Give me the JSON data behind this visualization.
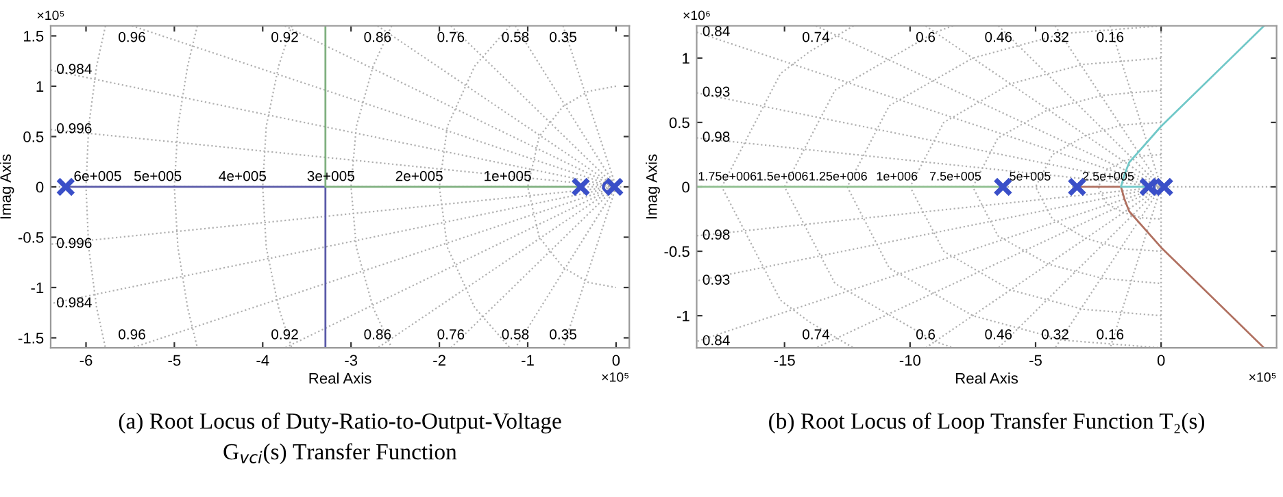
{
  "chart_data": [
    {
      "type": "line",
      "xlabel": "Real Axis",
      "ylabel": "Imag Axis",
      "xlim": [
        -6.4,
        0.15
      ],
      "ylim": [
        -1.6,
        1.6
      ],
      "xticks": [
        -6,
        -5,
        -4,
        -3,
        -2,
        -1,
        0
      ],
      "yticks": [
        -1.5,
        -1,
        -0.5,
        0,
        0.5,
        1,
        1.5
      ],
      "ref_lines": [
        {
          "axis": "y",
          "value": 0,
          "color": "#b0b0b0",
          "line_style": "dotted"
        }
      ],
      "series": [
        {
          "type": "line",
          "color": "#b0b0b0",
          "line_style": "dotted",
          "x": [
            -6.4,
            0,
            -6.4
          ],
          "values": [
            0.57,
            0,
            -0.57
          ]
        },
        {
          "type": "line",
          "color": "#b0b0b0",
          "line_style": "dotted",
          "x": [
            -6.4,
            0,
            -6.4
          ],
          "values": [
            1.16,
            0,
            -1.16
          ]
        },
        {
          "type": "line",
          "color": "#b0b0b0",
          "line_style": "dotted",
          "x": [
            -5.48,
            0,
            -5.48
          ],
          "values": [
            1.6,
            0,
            -1.6
          ]
        },
        {
          "type": "line",
          "color": "#b0b0b0",
          "line_style": "dotted",
          "x": [
            -3.75,
            0,
            -3.75
          ],
          "values": [
            1.6,
            0,
            -1.6
          ]
        },
        {
          "type": "line",
          "color": "#b0b0b0",
          "line_style": "dotted",
          "x": [
            -2.7,
            0,
            -2.7
          ],
          "values": [
            1.6,
            0,
            -1.6
          ]
        },
        {
          "type": "line",
          "color": "#b0b0b0",
          "line_style": "dotted",
          "x": [
            -1.87,
            0,
            -1.87
          ],
          "values": [
            1.6,
            0,
            -1.6
          ]
        },
        {
          "type": "line",
          "color": "#b0b0b0",
          "line_style": "dotted",
          "x": [
            -1.14,
            0,
            -1.14
          ],
          "values": [
            1.6,
            0,
            -1.6
          ]
        },
        {
          "type": "line",
          "color": "#b0b0b0",
          "line_style": "dotted",
          "x": [
            -0.6,
            0,
            -0.6
          ],
          "values": [
            1.6,
            0,
            -1.6
          ]
        },
        {
          "type": "line",
          "color": "#b0b0b0",
          "line_style": "dotted",
          "x": [
            0,
            -0.31,
            -0.6,
            -0.87,
            -1,
            -0.87,
            -0.6,
            -0.31,
            0
          ],
          "values": [
            1,
            0.95,
            0.8,
            0.5,
            0,
            -0.5,
            -0.8,
            -0.95,
            -1
          ]
        },
        {
          "type": "line",
          "color": "#b0b0b0",
          "line_style": "dotted",
          "x": [
            -1.2,
            -1.6,
            -1.91,
            -2,
            -1.91,
            -1.6,
            -1.2
          ],
          "values": [
            1.6,
            1.2,
            0.6,
            0,
            -0.6,
            -1.2,
            -1.6
          ]
        },
        {
          "type": "line",
          "color": "#b0b0b0",
          "line_style": "dotted",
          "x": [
            -2.54,
            -2.75,
            -2.94,
            -3,
            -2.94,
            -2.75,
            -2.54
          ],
          "values": [
            1.6,
            1.2,
            0.6,
            0,
            -0.6,
            -1.2,
            -1.6
          ]
        },
        {
          "type": "line",
          "color": "#b0b0b0",
          "line_style": "dotted",
          "x": [
            -3.67,
            -3.82,
            -3.96,
            -4,
            -3.96,
            -3.82,
            -3.67
          ],
          "values": [
            1.6,
            1.2,
            0.6,
            0,
            -0.6,
            -1.2,
            -1.6
          ]
        },
        {
          "type": "line",
          "color": "#b0b0b0",
          "line_style": "dotted",
          "x": [
            -4.74,
            -4.85,
            -4.96,
            -5,
            -4.96,
            -4.85,
            -4.74
          ],
          "values": [
            1.6,
            1.2,
            0.6,
            0,
            -0.6,
            -1.2,
            -1.6
          ]
        },
        {
          "type": "line",
          "color": "#b0b0b0",
          "line_style": "dotted",
          "x": [
            -5.78,
            -5.88,
            -5.97,
            -6,
            -5.97,
            -5.88,
            -5.78
          ],
          "values": [
            1.6,
            1.2,
            0.6,
            0,
            -0.6,
            -1.2,
            -1.6
          ]
        },
        {
          "type": "line",
          "color": "#5a5aa8",
          "line_style": "solid",
          "x": [
            -6.23,
            -3.29,
            -3.29
          ],
          "values": [
            0,
            0,
            -1.6
          ]
        },
        {
          "type": "line",
          "color": "#7fb07f",
          "line_style": "solid",
          "x": [
            -0.4,
            -3.29,
            -3.29
          ],
          "values": [
            0,
            0,
            1.6
          ]
        },
        {
          "type": "scatter",
          "color": "#3a4fc8",
          "marker": "cross",
          "x": [
            -6.23,
            -0.4,
            -0.02
          ],
          "values": [
            0,
            0,
            0
          ]
        },
        {
          "type": "scatter",
          "color": "#3a4fc8",
          "marker": "circle",
          "x": [
            -0.09
          ],
          "values": [
            0
          ]
        }
      ],
      "annotations": [
        "×10⁵",
        "×10⁵",
        "(a) Root Locus of Duty-Ratio-to-Output-Voltage\nG$_{vci}$(s) Transfer Function",
        {
          "text": "6e+005",
          "x": -6.14,
          "y": 0.03
        },
        {
          "text": "5e+005",
          "x": -5.46,
          "y": 0.03
        },
        {
          "text": "4e+005",
          "x": -4.5,
          "y": 0.03
        },
        {
          "text": "3e+005",
          "x": -3.5,
          "y": 0.03
        },
        {
          "text": "2e+005",
          "x": -2.5,
          "y": 0.03
        },
        {
          "text": "1e+005",
          "x": -1.5,
          "y": 0.03
        },
        {
          "text": "0.96",
          "x": -5.48,
          "y": 1.6
        },
        {
          "text": "0.92",
          "x": -3.75,
          "y": 1.6
        },
        {
          "text": "0.86",
          "x": -2.7,
          "y": 1.6
        },
        {
          "text": "0.76",
          "x": -1.87,
          "y": 1.6
        },
        {
          "text": "0.58",
          "x": -1.14,
          "y": 1.6
        },
        {
          "text": "0.35",
          "x": -0.6,
          "y": 1.6
        },
        {
          "text": "0.984",
          "x": -6.4,
          "y": 1.16
        },
        {
          "text": "0.996",
          "x": -6.4,
          "y": 0.57
        },
        {
          "text": "0.996",
          "x": -6.4,
          "y": -0.57
        },
        {
          "text": "0.984",
          "x": -6.4,
          "y": -1.16
        },
        {
          "text": "0.96",
          "x": -5.48,
          "y": -1.6
        },
        {
          "text": "0.92",
          "x": -3.75,
          "y": -1.6
        },
        {
          "text": "0.86",
          "x": -2.7,
          "y": -1.6
        },
        {
          "text": "0.76",
          "x": -1.87,
          "y": -1.6
        },
        {
          "text": "0.58",
          "x": -1.14,
          "y": -1.6
        },
        {
          "text": "0.35",
          "x": -0.6,
          "y": -1.6
        }
      ]
    },
    {
      "type": "line",
      "xlabel": "Real Axis",
      "ylabel": "Imag Axis",
      "xlim": [
        -18.5,
        4.6
      ],
      "ylim": [
        -1.25,
        1.25
      ],
      "xticks": [
        -15,
        -10,
        -5,
        0
      ],
      "yticks": [
        -1,
        -0.5,
        0,
        0.5,
        1
      ],
      "ref_lines": [
        {
          "axis": "y",
          "value": 0,
          "color": "#b0b0b0",
          "line_style": "dotted"
        },
        {
          "axis": "x",
          "value": 0,
          "color": "#b0b0b0",
          "line_style": "dotted"
        }
      ],
      "series": [
        {
          "type": "line",
          "color": "#b0b0b0",
          "line_style": "dotted",
          "x": [
            -18.5,
            0,
            -18.5
          ],
          "values": [
            0.38,
            0,
            -0.38
          ]
        },
        {
          "type": "line",
          "color": "#b0b0b0",
          "line_style": "dotted",
          "x": [
            -18.5,
            0,
            -18.5
          ],
          "values": [
            0.73,
            0,
            -0.73
          ]
        },
        {
          "type": "line",
          "color": "#b0b0b0",
          "line_style": "dotted",
          "x": [
            -18.5,
            0,
            -18.5
          ],
          "values": [
            1.2,
            0,
            -1.2
          ]
        },
        {
          "type": "line",
          "color": "#b0b0b0",
          "line_style": "dotted",
          "x": [
            -13.75,
            0,
            -13.75
          ],
          "values": [
            1.25,
            0,
            -1.25
          ]
        },
        {
          "type": "line",
          "color": "#b0b0b0",
          "line_style": "dotted",
          "x": [
            -9.38,
            0,
            -9.38
          ],
          "values": [
            1.25,
            0,
            -1.25
          ]
        },
        {
          "type": "line",
          "color": "#b0b0b0",
          "line_style": "dotted",
          "x": [
            -6.48,
            0,
            -6.48
          ],
          "values": [
            1.25,
            0,
            -1.25
          ]
        },
        {
          "type": "line",
          "color": "#b0b0b0",
          "line_style": "dotted",
          "x": [
            -4.22,
            0,
            -4.22
          ],
          "values": [
            1.25,
            0,
            -1.25
          ]
        },
        {
          "type": "line",
          "color": "#b0b0b0",
          "line_style": "dotted",
          "x": [
            -2.03,
            0,
            -2.03
          ],
          "values": [
            1.25,
            0,
            -1.25
          ]
        },
        {
          "type": "line",
          "color": "#b0b0b0",
          "line_style": "dotted",
          "x": [
            0,
            -0.78,
            -1.5,
            -2.17,
            -2.5,
            -2.17,
            -1.5,
            -0.78,
            0
          ],
          "values": [
            0.25,
            0.24,
            0.2,
            0.13,
            0,
            -0.13,
            -0.2,
            -0.24,
            -0.25
          ]
        },
        {
          "type": "line",
          "color": "#b0b0b0",
          "line_style": "dotted",
          "x": [
            0,
            -1.56,
            -3,
            -4.33,
            -5,
            -4.33,
            -3,
            -1.56,
            0
          ],
          "values": [
            0.5,
            0.48,
            0.4,
            0.25,
            0,
            -0.25,
            -0.4,
            -0.48,
            -0.5
          ]
        },
        {
          "type": "line",
          "color": "#b0b0b0",
          "line_style": "dotted",
          "x": [
            0,
            -2.34,
            -4.5,
            -6.5,
            -7.5,
            -6.5,
            -4.5,
            -2.34,
            0
          ],
          "values": [
            0.75,
            0.71,
            0.6,
            0.38,
            0,
            -0.38,
            -0.6,
            -0.71,
            -0.75
          ]
        },
        {
          "type": "line",
          "color": "#b0b0b0",
          "line_style": "dotted",
          "x": [
            0,
            -3.12,
            -6,
            -8.66,
            -10,
            -8.66,
            -6,
            -3.12,
            0
          ],
          "values": [
            1,
            0.95,
            0.8,
            0.5,
            0,
            -0.5,
            -0.8,
            -0.95,
            -1
          ]
        },
        {
          "type": "line",
          "color": "#b0b0b0",
          "line_style": "dotted",
          "x": [
            0,
            -3.9,
            -7.5,
            -10.83,
            -12.5,
            -10.83,
            -7.5,
            -3.9,
            0
          ],
          "values": [
            1.25,
            1.19,
            1,
            0.63,
            0,
            -0.63,
            -1,
            -1.19,
            -1.25
          ]
        },
        {
          "type": "line",
          "color": "#b0b0b0",
          "line_style": "dotted",
          "x": [
            -8.29,
            -9,
            -12.99,
            -15,
            -12.99,
            -9,
            -8.29
          ],
          "values": [
            1.25,
            1.2,
            0.75,
            0,
            -0.75,
            -1.2,
            -1.25
          ]
        },
        {
          "type": "line",
          "color": "#b0b0b0",
          "line_style": "dotted",
          "x": [
            -12.25,
            -14,
            -15.16,
            -17.5,
            -15.16,
            -14,
            -12.25
          ],
          "values": [
            1.25,
            1.05,
            0.88,
            0,
            -0.88,
            -1.05,
            -1.25
          ]
        },
        {
          "type": "line",
          "color": "#8fbf8f",
          "line_style": "solid",
          "x": [
            -18.5,
            -6.3
          ],
          "values": [
            0,
            0
          ]
        },
        {
          "type": "line",
          "color": "#b07060",
          "line_style": "solid",
          "x": [
            -3.35,
            -1.6,
            -1.45,
            -1.27,
            0,
            4.1
          ],
          "values": [
            0,
            0,
            -0.1,
            -0.19,
            -0.47,
            -1.25
          ]
        },
        {
          "type": "line",
          "color": "#70c8c8",
          "line_style": "solid",
          "x": [
            -0.5,
            -1.6,
            -1.45,
            -1.27,
            0,
            4.1
          ],
          "values": [
            0,
            0,
            0.1,
            0.19,
            0.47,
            1.25
          ]
        },
        {
          "type": "scatter",
          "color": "#3a4fc8",
          "marker": "cross",
          "x": [
            -6.3,
            -3.35,
            -0.5,
            0.12
          ],
          "values": [
            0,
            0,
            0,
            0
          ]
        },
        {
          "type": "scatter",
          "color": "#3a4fc8",
          "marker": "circle",
          "x": [
            -0.1
          ],
          "values": [
            0
          ]
        }
      ],
      "annotations": [
        "×10⁶",
        "×10⁵",
        "(b) Root Locus of Loop Transfer Function T₂(s)",
        {
          "text": "1.75e+006",
          "x": -18.45,
          "y": 0.03
        },
        {
          "text": "1.5e+006",
          "x": -16.12,
          "y": 0.03
        },
        {
          "text": "1.25e+006",
          "x": -14.04,
          "y": 0.03
        },
        {
          "text": "1e+006",
          "x": -11.35,
          "y": 0.03
        },
        {
          "text": "7.5e+005",
          "x": -9.23,
          "y": 0.03
        },
        {
          "text": "5e+005",
          "x": -6.05,
          "y": 0.03
        },
        {
          "text": "2.5e+005",
          "x": -3.14,
          "y": 0.03
        },
        {
          "text": "0.84",
          "x": -18.5,
          "y": 1.2
        },
        {
          "text": "0.74",
          "x": -13.75,
          "y": 1.25
        },
        {
          "text": "0.6",
          "x": -9.38,
          "y": 1.25
        },
        {
          "text": "0.46",
          "x": -6.48,
          "y": 1.25
        },
        {
          "text": "0.32",
          "x": -4.22,
          "y": 1.25
        },
        {
          "text": "0.16",
          "x": -2.03,
          "y": 1.25
        },
        {
          "text": "0.93",
          "x": -18.5,
          "y": 0.73
        },
        {
          "text": "0.98",
          "x": -18.5,
          "y": 0.38
        },
        {
          "text": "0.98",
          "x": -18.5,
          "y": -0.38
        },
        {
          "text": "0.93",
          "x": -18.5,
          "y": -0.73
        },
        {
          "text": "0.84",
          "x": -18.5,
          "y": -1.2
        },
        {
          "text": "0.74",
          "x": -13.75,
          "y": -1.25
        },
        {
          "text": "0.6",
          "x": -9.38,
          "y": -1.25
        },
        {
          "text": "0.46",
          "x": -6.48,
          "y": -1.25
        },
        {
          "text": "0.32",
          "x": -4.22,
          "y": -1.25
        },
        {
          "text": "0.16",
          "x": -2.03,
          "y": -1.25
        }
      ]
    }
  ]
}
